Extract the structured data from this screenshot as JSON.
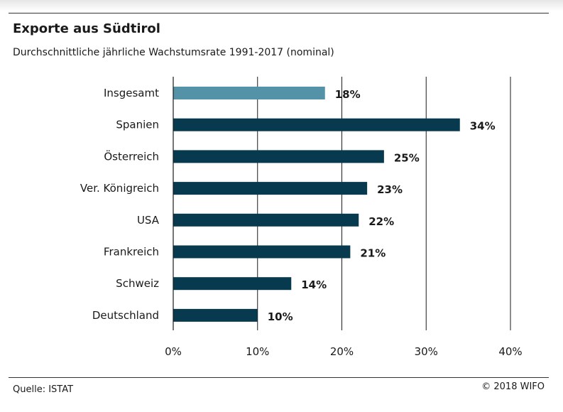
{
  "header": {
    "title": "Exporte aus Südtirol",
    "subtitle": "Durchschnittliche jährliche Wachstumsrate 1991-2017 (nominal)"
  },
  "footer": {
    "source": "Quelle: ISTAT",
    "copyright": "© 2018 WIFO"
  },
  "chart_data": {
    "type": "bar",
    "orientation": "horizontal",
    "title": "Exporte aus Südtirol",
    "subtitle": "Durchschnittliche jährliche Wachstumsrate 1991-2017 (nominal)",
    "categories": [
      "Insgesamt",
      "Spanien",
      "Österreich",
      "Ver. Königreich",
      "USA",
      "Frankreich",
      "Schweiz",
      "Deutschland"
    ],
    "values": [
      18,
      34,
      25,
      23,
      22,
      21,
      14,
      10
    ],
    "value_labels": [
      "18%",
      "34%",
      "25%",
      "23%",
      "22%",
      "21%",
      "14%",
      "10%"
    ],
    "xlim": [
      0,
      40
    ],
    "xticks": [
      0,
      10,
      20,
      30,
      40
    ],
    "xtick_labels": [
      "0%",
      "10%",
      "20%",
      "30%",
      "40%"
    ],
    "grid": true,
    "colors": {
      "highlight": "#5492a8",
      "bar": "#073a4e",
      "axis": "#1a1a1a"
    },
    "highlight_index": 0
  }
}
